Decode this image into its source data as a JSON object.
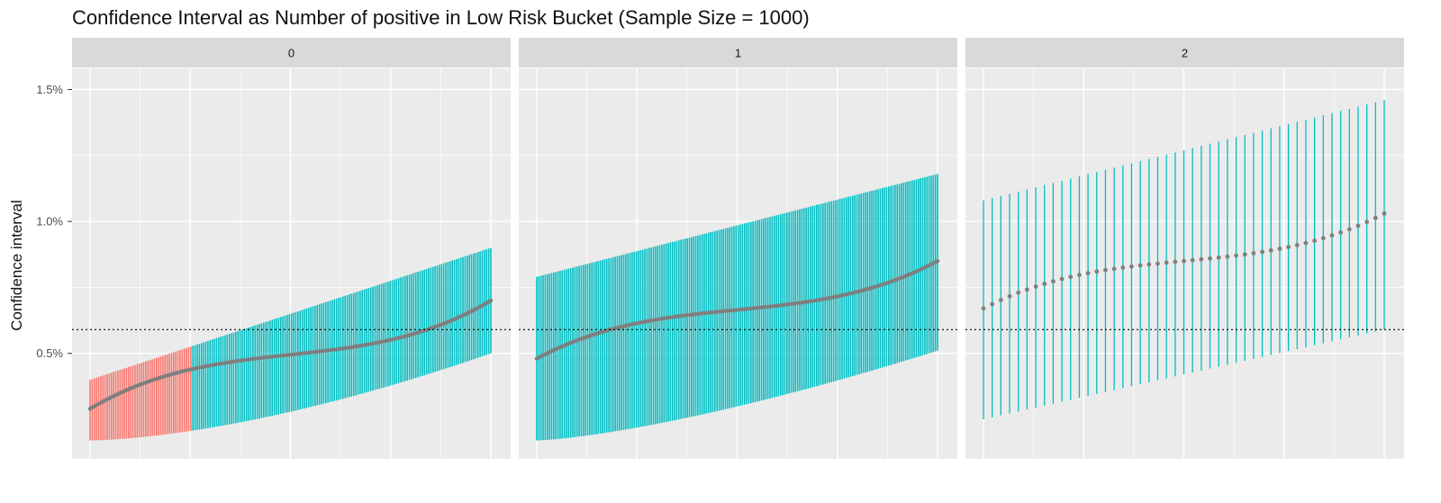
{
  "chart_data": {
    "type": "errorbar",
    "title": "Confidence Interval as Number of positive in Low Risk Bucket (Sample Size = 1000)",
    "ylabel": "Confidence interval",
    "xlabel": "",
    "y_ticks": [
      "0.5%",
      "1.0%",
      "1.5%"
    ],
    "y_tick_values": [
      0.005,
      0.01,
      0.015
    ],
    "ylim": [
      0.001,
      0.0158
    ],
    "reference_line": 0.0059,
    "grid": true,
    "colors": {
      "covers_reference": "#f8766d",
      "excludes_reference": "#00bfc4",
      "point": "#7f7f7f",
      "panel_background": "#ebebeb",
      "strip_background": "#d9d9d9",
      "gridline": "#ffffff"
    },
    "panels": [
      {
        "label": "0",
        "n": 188,
        "lower_start": 0.0017,
        "lower_end": 0.005,
        "lower_curve": 1.6,
        "est_start": 0.0029,
        "est_end": 0.007,
        "upper_start": 0.004,
        "upper_end": 0.009,
        "red_count": 48
      },
      {
        "label": "1",
        "n": 190,
        "lower_start": 0.0017,
        "lower_end": 0.0051,
        "lower_curve": 1.4,
        "est_start": 0.0048,
        "est_end": 0.0085,
        "upper_start": 0.0079,
        "upper_end": 0.0118,
        "red_count": 0
      },
      {
        "label": "2",
        "n": 47,
        "lower_start": 0.0025,
        "lower_end": 0.0059,
        "lower_curve": 1.0,
        "est_start": 0.0067,
        "est_end": 0.0103,
        "upper_start": 0.0108,
        "upper_end": 0.0146,
        "red_count": 0
      }
    ]
  }
}
